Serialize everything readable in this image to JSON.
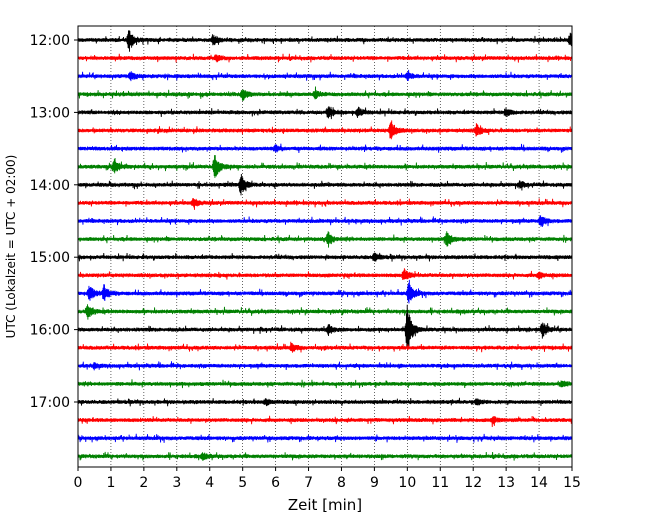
{
  "chart_data": {
    "type": "line",
    "xlabel": "Zeit  [min]",
    "ylabel": "UTC (Lokalzeit = UTC + 02:00)",
    "xlim": [
      0,
      15
    ],
    "x_ticks": [
      "0",
      "1",
      "2",
      "3",
      "4",
      "5",
      "6",
      "7",
      "8",
      "9",
      "10",
      "11",
      "12",
      "13",
      "14",
      "15"
    ],
    "y_ticks": [
      "12:00",
      "13:00",
      "14:00",
      "15:00",
      "16:00",
      "17:00"
    ],
    "grid": "vertical-dotted",
    "colors": [
      "#000000",
      "#ff0000",
      "#0000ff",
      "#008000"
    ],
    "rows": [
      {
        "label": "12:00",
        "color": "#000000",
        "events": [
          {
            "t": 1.55,
            "a": 11
          },
          {
            "t": 4.1,
            "a": 5
          },
          {
            "t": 14.95,
            "a": 6
          }
        ]
      },
      {
        "label": "12:15",
        "color": "#ff0000",
        "events": [
          {
            "t": 4.2,
            "a": 3
          }
        ]
      },
      {
        "label": "12:30",
        "color": "#0000ff",
        "events": [
          {
            "t": 1.6,
            "a": 4
          },
          {
            "t": 10.0,
            "a": 4
          }
        ]
      },
      {
        "label": "12:45",
        "color": "#008000",
        "events": [
          {
            "t": 5.0,
            "a": 6
          },
          {
            "t": 7.2,
            "a": 4
          }
        ]
      },
      {
        "label": "13:00",
        "color": "#000000",
        "events": [
          {
            "t": 7.6,
            "a": 6
          },
          {
            "t": 8.5,
            "a": 5
          },
          {
            "t": 13.0,
            "a": 4
          }
        ]
      },
      {
        "label": "13:15",
        "color": "#ff0000",
        "events": [
          {
            "t": 9.5,
            "a": 10
          },
          {
            "t": 12.1,
            "a": 6
          }
        ]
      },
      {
        "label": "13:30",
        "color": "#0000ff",
        "events": [
          {
            "t": 6.0,
            "a": 3
          }
        ]
      },
      {
        "label": "13:45",
        "color": "#008000",
        "events": [
          {
            "t": 1.1,
            "a": 7
          },
          {
            "t": 4.15,
            "a": 13
          }
        ]
      },
      {
        "label": "14:00",
        "color": "#000000",
        "events": [
          {
            "t": 4.95,
            "a": 10
          },
          {
            "t": 13.4,
            "a": 3
          }
        ]
      },
      {
        "label": "14:15",
        "color": "#ff0000",
        "events": [
          {
            "t": 3.5,
            "a": 4
          }
        ]
      },
      {
        "label": "14:30",
        "color": "#0000ff",
        "events": [
          {
            "t": 14.05,
            "a": 6
          }
        ]
      },
      {
        "label": "14:45",
        "color": "#008000",
        "events": [
          {
            "t": 7.6,
            "a": 7
          },
          {
            "t": 11.2,
            "a": 8
          }
        ]
      },
      {
        "label": "15:00",
        "color": "#000000",
        "events": [
          {
            "t": 9.0,
            "a": 4
          }
        ]
      },
      {
        "label": "15:15",
        "color": "#ff0000",
        "events": [
          {
            "t": 9.9,
            "a": 6
          },
          {
            "t": 14.0,
            "a": 3
          }
        ]
      },
      {
        "label": "15:30",
        "color": "#0000ff",
        "events": [
          {
            "t": 0.35,
            "a": 8
          },
          {
            "t": 0.8,
            "a": 7
          },
          {
            "t": 10.05,
            "a": 11
          }
        ]
      },
      {
        "label": "15:45",
        "color": "#008000",
        "events": [
          {
            "t": 0.3,
            "a": 7
          }
        ]
      },
      {
        "label": "16:00",
        "color": "#000000",
        "events": [
          {
            "t": 10.0,
            "a": 24
          },
          {
            "t": 14.1,
            "a": 8
          },
          {
            "t": 7.6,
            "a": 5
          }
        ]
      },
      {
        "label": "16:15",
        "color": "#ff0000",
        "events": [
          {
            "t": 6.5,
            "a": 4
          }
        ]
      },
      {
        "label": "16:30",
        "color": "#0000ff",
        "events": [
          {
            "t": 0.5,
            "a": 2
          }
        ]
      },
      {
        "label": "16:45",
        "color": "#008000",
        "events": [
          {
            "t": 14.7,
            "a": 3
          }
        ]
      },
      {
        "label": "17:00",
        "color": "#000000",
        "events": [
          {
            "t": 5.7,
            "a": 3
          },
          {
            "t": 12.1,
            "a": 3
          }
        ]
      },
      {
        "label": "17:15",
        "color": "#ff0000",
        "events": [
          {
            "t": 12.6,
            "a": 3
          }
        ]
      },
      {
        "label": "17:30",
        "color": "#0000ff",
        "events": []
      },
      {
        "label": "17:45",
        "color": "#008000",
        "events": [
          {
            "t": 3.8,
            "a": 3
          }
        ]
      }
    ]
  }
}
